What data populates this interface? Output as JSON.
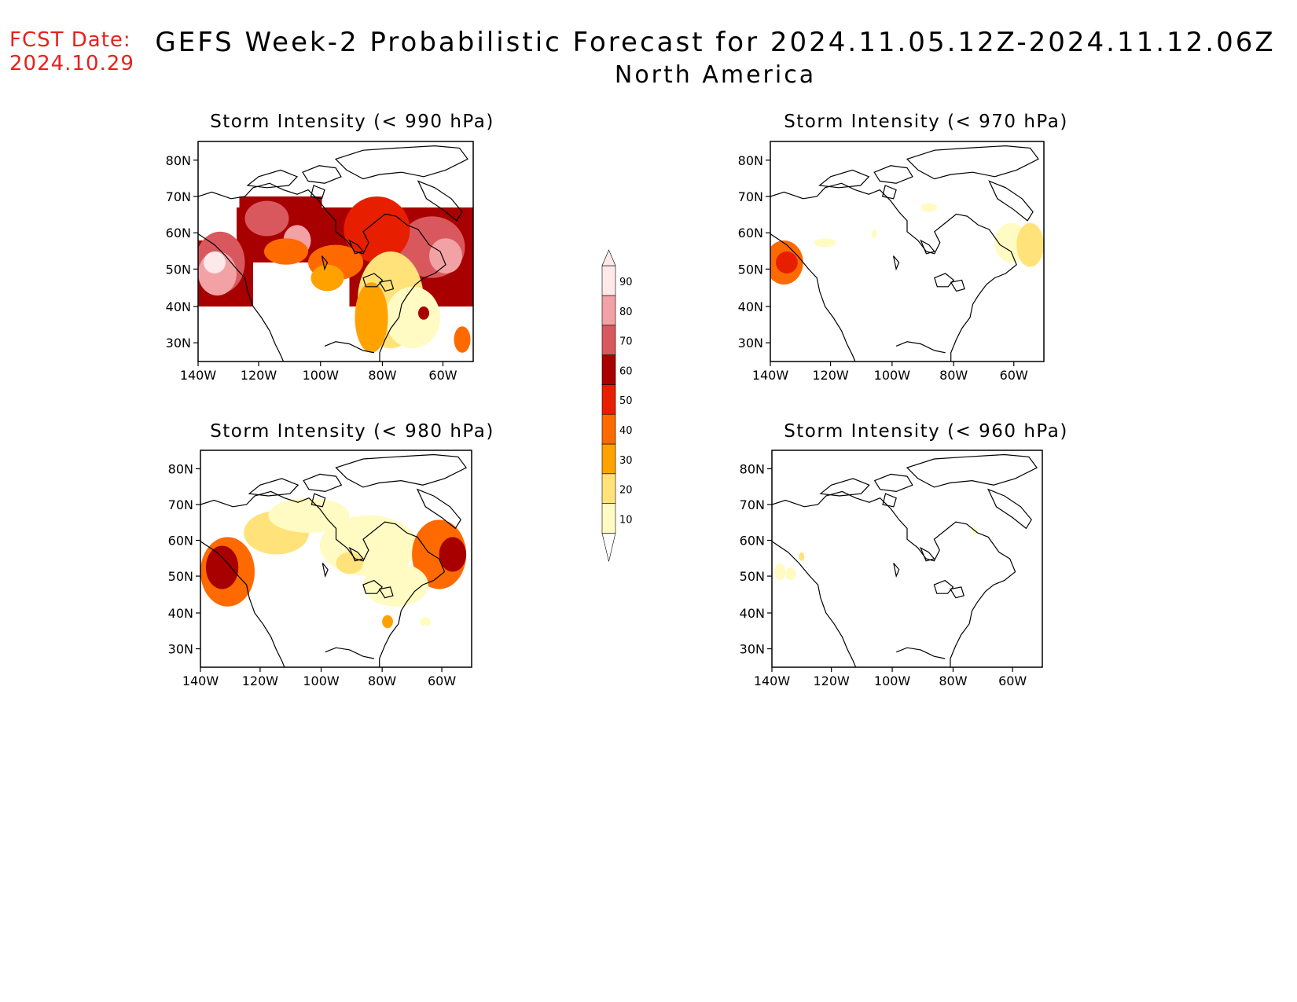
{
  "header": {
    "fcst_label": "FCST Date:",
    "fcst_date": "2024.10.29",
    "title": "GEFS Week-2 Probabilistic Forecast for 2024.11.05.12Z-2024.11.12.06Z",
    "subtitle": "North America"
  },
  "axes": {
    "lon_ticks": [
      "140W",
      "120W",
      "100W",
      "80W",
      "60W"
    ],
    "lat_ticks": [
      "80N",
      "70N",
      "60N",
      "50N",
      "40N",
      "30N"
    ]
  },
  "panels": [
    {
      "title": "Storm Intensity (< 990 hPa)",
      "threshold_hPa": 990,
      "coverage": "extensive"
    },
    {
      "title": "Storm Intensity (< 970 hPa)",
      "threshold_hPa": 970,
      "coverage": "sparse"
    },
    {
      "title": "Storm Intensity (< 980 hPa)",
      "threshold_hPa": 980,
      "coverage": "moderate"
    },
    {
      "title": "Storm Intensity (< 960 hPa)",
      "threshold_hPa": 960,
      "coverage": "minimal"
    }
  ],
  "colorbar": {
    "labels": [
      "10",
      "20",
      "30",
      "40",
      "50",
      "60",
      "70",
      "80",
      "90"
    ],
    "colors": [
      "#fffbc2",
      "#ffe37a",
      "#ffa200",
      "#ff6a00",
      "#e81e00",
      "#a80000",
      "#d9585e",
      "#f2a1a5",
      "#fde8ea"
    ]
  }
}
